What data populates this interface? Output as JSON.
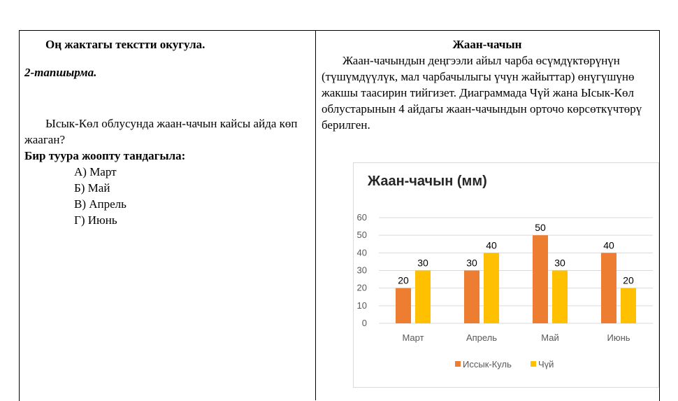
{
  "left_column": {
    "instruction": "Оң жактагы текстти окугула.",
    "task_label": "2-тапшырма.",
    "question": "Ысык-Көл облусунда жаан-чачын кайсы айда көп жааган?",
    "prompt": "Бир туура жоопту тандагыла:",
    "options": [
      "А) Март",
      "Б) Май",
      "В) Апрель",
      "Г) Июнь"
    ]
  },
  "right_column": {
    "title": "Жаан-чачын",
    "paragraph": "Жаан-чачындын деңгээли айыл чарба өсүмдүктөрүнүн (түшүмдүүлүк, мал чарбачылыгы үчүн жайыттар) өнүгүшүнө жакшы таасирин тийгизет. Диаграммада Чүй жана Ысык-Көл облустарынын 4 айдагы жаан-чачындын орточо көрсөткүчтөрү берилген."
  },
  "chart_data": {
    "type": "bar",
    "title": "Жаан-чачын (мм)",
    "categories": [
      "Март",
      "Апрель",
      "Май",
      "Июнь"
    ],
    "series": [
      {
        "name": "Иссык-Куль",
        "values": [
          20,
          30,
          50,
          40
        ],
        "color": "#ed7d31"
      },
      {
        "name": "Чүй",
        "values": [
          30,
          40,
          30,
          20
        ],
        "color": "#ffc000"
      }
    ],
    "ylim": [
      0,
      60
    ],
    "yticks": [
      0,
      10,
      20,
      30,
      40,
      50,
      60
    ],
    "grid": true,
    "legend": "bottom"
  }
}
